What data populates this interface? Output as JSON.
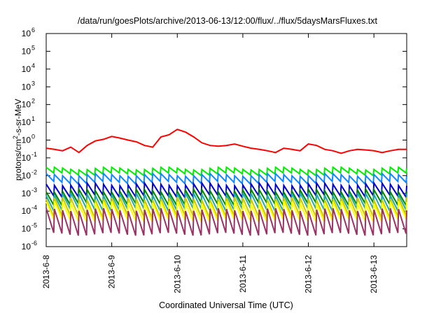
{
  "chart_data": {
    "type": "line",
    "title": "/data/run/goesPlots/archive/2013-06-13/12:00/flux/../flux/5daysMarsFluxes.txt",
    "xlabel": "Coordinated Universal Time (UTC)",
    "ylabel": "protons/cm²-s-sr-MeV",
    "y_scale": "log",
    "ylim": [
      1e-06,
      1000000.0
    ],
    "xlim": [
      "2013-06-08T00:00",
      "2013-06-13T12:00"
    ],
    "grid": false,
    "legend": "none",
    "x_ticks": [
      "2013-6-8",
      "2013-6-9",
      "2013-6-10",
      "2013-6-11",
      "2013-6-12",
      "2013-6-13"
    ],
    "y_ticks": [
      {
        "base": "10",
        "exp": "-6",
        "value": 1e-06
      },
      {
        "base": "10",
        "exp": "-5",
        "value": 1e-05
      },
      {
        "base": "10",
        "exp": "-4",
        "value": 0.0001
      },
      {
        "base": "10",
        "exp": "-3",
        "value": 0.001
      },
      {
        "base": "10",
        "exp": "-2",
        "value": 0.01
      },
      {
        "base": "10",
        "exp": "-1",
        "value": 0.1
      },
      {
        "base": "10",
        "exp": "0",
        "value": 1
      },
      {
        "base": "10",
        "exp": "1",
        "value": 10
      },
      {
        "base": "10",
        "exp": "2",
        "value": 100
      },
      {
        "base": "10",
        "exp": "3",
        "value": 1000
      },
      {
        "base": "10",
        "exp": "4",
        "value": 10000
      },
      {
        "base": "10",
        "exp": "5",
        "value": 100000
      },
      {
        "base": "10",
        "exp": "6",
        "value": 1000000
      }
    ],
    "series": [
      {
        "color": "#ff0000",
        "x": [
          "2013-06-08T00:00",
          "2013-06-08T03:00",
          "2013-06-08T06:00",
          "2013-06-08T09:00",
          "2013-06-08T12:00",
          "2013-06-08T15:00",
          "2013-06-08T18:00",
          "2013-06-08T21:00",
          "2013-06-09T00:00",
          "2013-06-09T03:00",
          "2013-06-09T06:00",
          "2013-06-09T09:00",
          "2013-06-09T12:00",
          "2013-06-09T15:00",
          "2013-06-09T18:00",
          "2013-06-09T21:00",
          "2013-06-10T00:00",
          "2013-06-10T03:00",
          "2013-06-10T06:00",
          "2013-06-10T09:00",
          "2013-06-10T12:00",
          "2013-06-10T15:00",
          "2013-06-10T18:00",
          "2013-06-10T21:00",
          "2013-06-11T00:00",
          "2013-06-11T03:00",
          "2013-06-11T06:00",
          "2013-06-11T09:00",
          "2013-06-11T12:00",
          "2013-06-11T15:00",
          "2013-06-11T18:00",
          "2013-06-11T21:00",
          "2013-06-12T00:00",
          "2013-06-12T03:00",
          "2013-06-12T06:00",
          "2013-06-12T09:00",
          "2013-06-12T12:00",
          "2013-06-12T15:00",
          "2013-06-12T18:00",
          "2013-06-12T21:00",
          "2013-06-13T00:00",
          "2013-06-13T03:00",
          "2013-06-13T06:00",
          "2013-06-13T09:00",
          "2013-06-13T12:00"
        ],
        "values": [
          0.35,
          0.3,
          0.25,
          0.4,
          0.2,
          0.5,
          0.9,
          1.1,
          1.6,
          1.3,
          1.0,
          0.8,
          0.5,
          0.4,
          1.5,
          2.0,
          4.0,
          2.8,
          1.5,
          0.7,
          0.5,
          0.45,
          0.5,
          0.6,
          0.45,
          0.35,
          0.3,
          0.25,
          0.2,
          0.35,
          0.3,
          0.25,
          0.6,
          0.5,
          0.3,
          0.25,
          0.18,
          0.25,
          0.3,
          0.28,
          0.25,
          0.2,
          0.25,
          0.3,
          0.3
        ]
      },
      {
        "color": "#00ee00",
        "pattern": "sawtooth",
        "period_hours": 3,
        "y_low": 0.012,
        "y_high": 0.025,
        "values": [
          0.012,
          0.025
        ]
      },
      {
        "color": "#1188ff",
        "pattern": "sawtooth",
        "period_hours": 3,
        "y_low": 0.004,
        "y_high": 0.011,
        "values": [
          0.004,
          0.011
        ]
      },
      {
        "color": "#0000cc",
        "pattern": "sawtooth",
        "period_hours": 3,
        "y_low": 0.0007,
        "y_high": 0.0032,
        "values": [
          0.0007,
          0.0032
        ]
      },
      {
        "color": "#008800",
        "pattern": "sawtooth",
        "period_hours": 3,
        "y_low": 0.00025,
        "y_high": 0.0014,
        "values": [
          0.00025,
          0.0014
        ]
      },
      {
        "color": "#22aaaa",
        "pattern": "sawtooth",
        "period_hours": 3,
        "y_low": 0.00012,
        "y_high": 0.0009,
        "values": [
          0.00012,
          0.0009
        ]
      },
      {
        "color": "#cccc00",
        "pattern": "sawtooth",
        "period_hours": 3,
        "y_low": 5e-05,
        "y_high": 0.0005,
        "values": [
          5e-05,
          0.0005
        ]
      },
      {
        "color": "#ffff00",
        "pattern": "sawtooth",
        "period_hours": 3,
        "y_low": 3e-05,
        "y_high": 0.0003,
        "values": [
          3e-05,
          0.0003
        ]
      },
      {
        "color": "#993366",
        "pattern": "sawtooth",
        "period_hours": 3,
        "y_low": 5e-06,
        "y_high": 0.00012,
        "values": [
          5e-06,
          0.00012
        ]
      }
    ]
  }
}
